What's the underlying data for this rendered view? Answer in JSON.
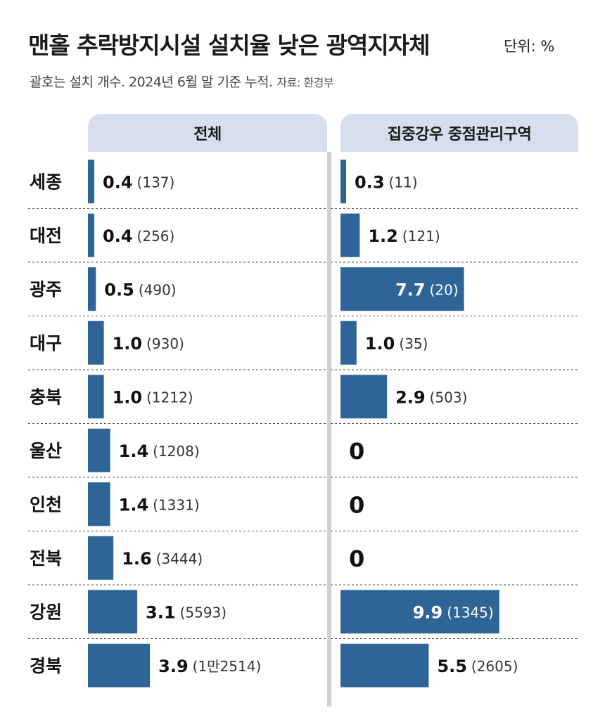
{
  "header": {
    "title": "맨홀 추락방지시설 설치율 낮은 광역지자체",
    "unit": "단위: %",
    "subtitle": "괄호는 설치 개수. 2024년 6월 말 기준 누적.",
    "source": "자료: 환경부"
  },
  "colors": {
    "bar": "#2f6496",
    "header_bg": "#d6dfee",
    "label_on_bar": "#ffffff",
    "divider": "#d0d0d0"
  },
  "chart_data": [
    {
      "type": "bar",
      "orientation": "horizontal",
      "title": "전체",
      "categories": [
        "세종",
        "대전",
        "광주",
        "대구",
        "충북",
        "울산",
        "인천",
        "전북",
        "강원",
        "경북"
      ],
      "values": [
        0.4,
        0.4,
        0.5,
        1.0,
        1.0,
        1.4,
        1.4,
        1.6,
        3.1,
        3.9
      ],
      "value_labels": [
        "0.4",
        "0.4",
        "0.5",
        "1.0",
        "1.0",
        "1.4",
        "1.4",
        "1.6",
        "3.1",
        "3.9"
      ],
      "counts": [
        "(137)",
        "(256)",
        "(490)",
        "(930)",
        "(1212)",
        "(1208)",
        "(1331)",
        "(3444)",
        "(5593)",
        "(1만2514)"
      ]
    },
    {
      "type": "bar",
      "orientation": "horizontal",
      "title": "집중강우 중점관리구역",
      "categories": [
        "세종",
        "대전",
        "광주",
        "대구",
        "충북",
        "울산",
        "인천",
        "전북",
        "강원",
        "경북"
      ],
      "values": [
        0.3,
        1.2,
        7.7,
        1.0,
        2.9,
        0,
        0,
        0,
        9.9,
        5.5
      ],
      "value_labels": [
        "0.3",
        "1.2",
        "7.7",
        "1.0",
        "2.9",
        "0",
        "0",
        "0",
        "9.9",
        "5.5"
      ],
      "counts": [
        "(11)",
        "(121)",
        "(20)",
        "(35)",
        "(503)",
        "",
        "",
        "",
        "(1345)",
        "(2605)"
      ]
    }
  ]
}
